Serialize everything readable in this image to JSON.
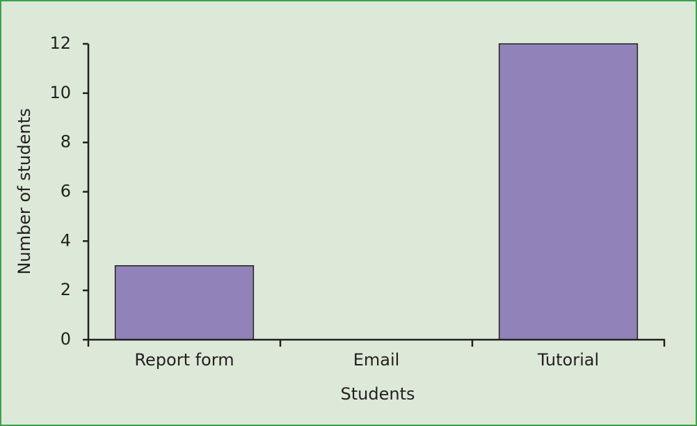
{
  "chart_data": {
    "type": "bar",
    "x_label": "Students",
    "y_label": "Number of students",
    "categories": [
      "Report form",
      "Email",
      "Tutorial"
    ],
    "values": [
      3,
      0,
      12
    ],
    "color": "#9183b9",
    "ylim": [
      0,
      12
    ],
    "yticks": [
      0,
      2,
      4,
      6,
      8,
      10,
      12
    ],
    "grid": false
  }
}
